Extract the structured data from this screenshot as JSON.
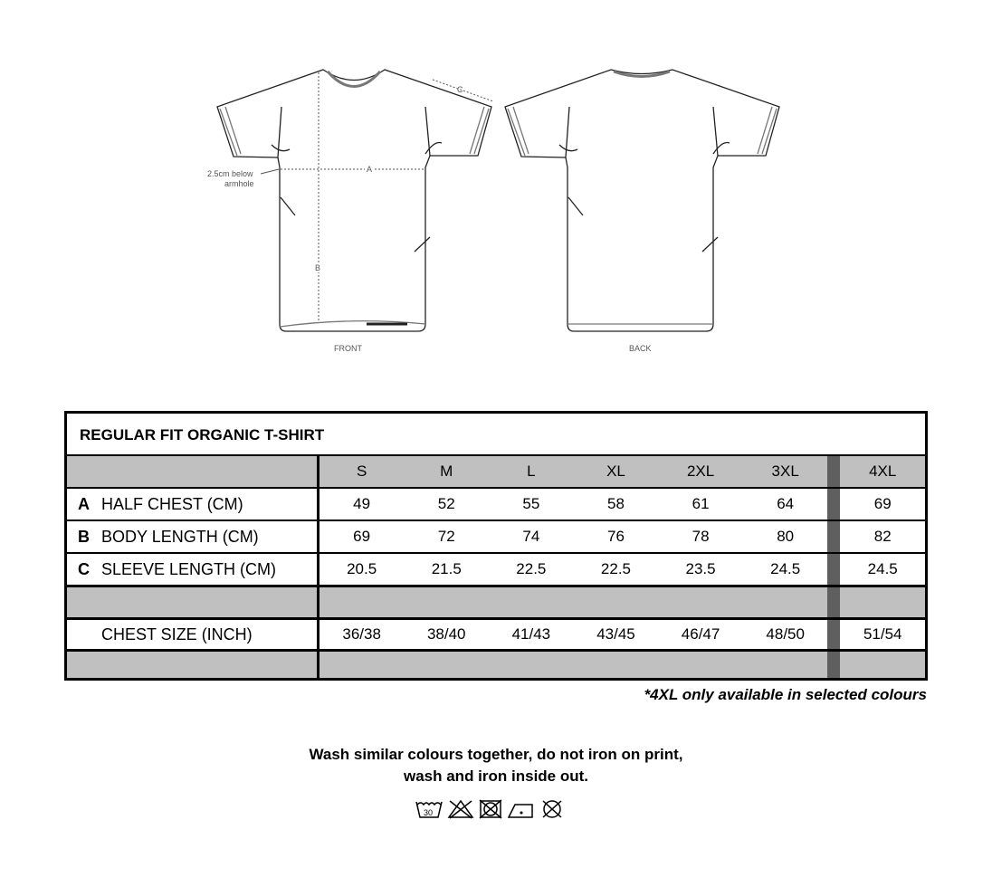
{
  "diagram": {
    "front_label": "FRONT",
    "back_label": "BACK",
    "measure_a": "A",
    "measure_b": "B",
    "measure_c": "C",
    "armhole_note_1": "2.5cm below",
    "armhole_note_2": "armhole"
  },
  "table": {
    "title": "REGULAR FIT ORGANIC T-SHIRT",
    "sizes": [
      "S",
      "M",
      "L",
      "XL",
      "2XL",
      "3XL",
      "4XL"
    ],
    "rows": [
      {
        "letter": "A",
        "label": "HALF CHEST (CM)",
        "values": [
          "49",
          "52",
          "55",
          "58",
          "61",
          "64",
          "69"
        ]
      },
      {
        "letter": "B",
        "label": "BODY LENGTH (CM)",
        "values": [
          "69",
          "72",
          "74",
          "76",
          "78",
          "80",
          "82"
        ]
      },
      {
        "letter": "C",
        "label": "SLEEVE LENGTH (CM)",
        "values": [
          "20.5",
          "21.5",
          "22.5",
          "22.5",
          "23.5",
          "24.5",
          "24.5"
        ]
      },
      {
        "letter": "",
        "label": "CHEST SIZE (INCH)",
        "values": [
          "36/38",
          "38/40",
          "41/43",
          "43/45",
          "46/47",
          "48/50",
          "51/54"
        ]
      }
    ],
    "colors": {
      "header_gray": "#c0c0c0",
      "separator_gray": "#5f5f5f"
    }
  },
  "footnote": "*4XL only available in selected colours",
  "care": {
    "line1": "Wash similar colours together, do not iron on print,",
    "line2": "wash and iron inside out.",
    "wash_temp": "30",
    "icons": [
      "wash-30-icon",
      "no-bleach-icon",
      "no-tumble-dry-icon",
      "iron-low-icon",
      "no-dry-clean-icon"
    ]
  }
}
